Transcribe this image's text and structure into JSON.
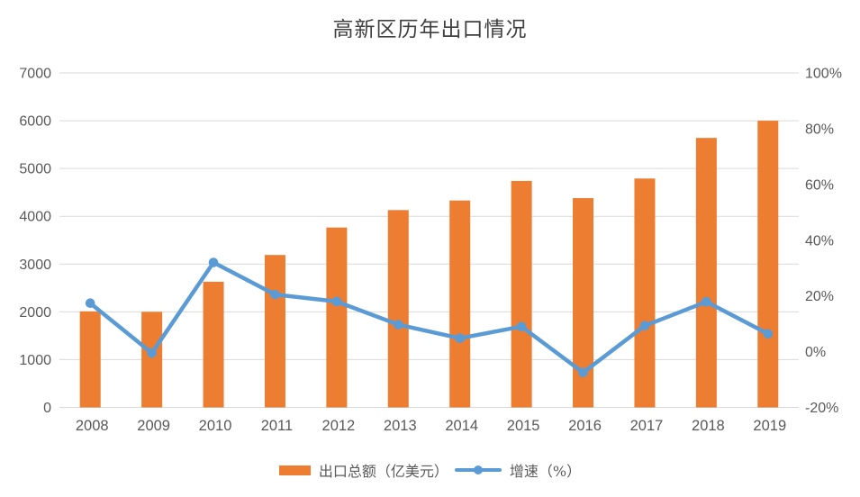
{
  "chart_data": {
    "type": "bar+line",
    "title": "高新区历年出口情况",
    "categories": [
      "2008",
      "2009",
      "2010",
      "2011",
      "2012",
      "2013",
      "2014",
      "2015",
      "2016",
      "2017",
      "2018",
      "2019"
    ],
    "series": [
      {
        "name": "出口总额（亿美元）",
        "type": "bar",
        "axis": "left",
        "color": "#ED7D31",
        "values": [
          2010,
          2000,
          2630,
          3190,
          3765,
          4130,
          4330,
          4740,
          4380,
          4790,
          5640,
          6000
        ]
      },
      {
        "name": "增速（%）",
        "type": "line",
        "axis": "right",
        "color": "#5B9BD5",
        "values": [
          17.4,
          -0.5,
          32.0,
          20.5,
          18.0,
          9.7,
          4.8,
          9.0,
          -7.5,
          9.3,
          17.9,
          6.4
        ]
      }
    ],
    "left_axis": {
      "min": 0,
      "max": 7000,
      "step": 1000,
      "suffix": ""
    },
    "right_axis": {
      "min": -20,
      "max": 100,
      "step": 20,
      "suffix": "%"
    },
    "grid": "horizontal",
    "legend_position": "bottom"
  },
  "colors": {
    "background": "#FFFFFF",
    "gridline": "#D9D9D9",
    "axis_text": "#595959",
    "title_text": "#404040",
    "bar": "#ED7D31",
    "line": "#5B9BD5"
  }
}
